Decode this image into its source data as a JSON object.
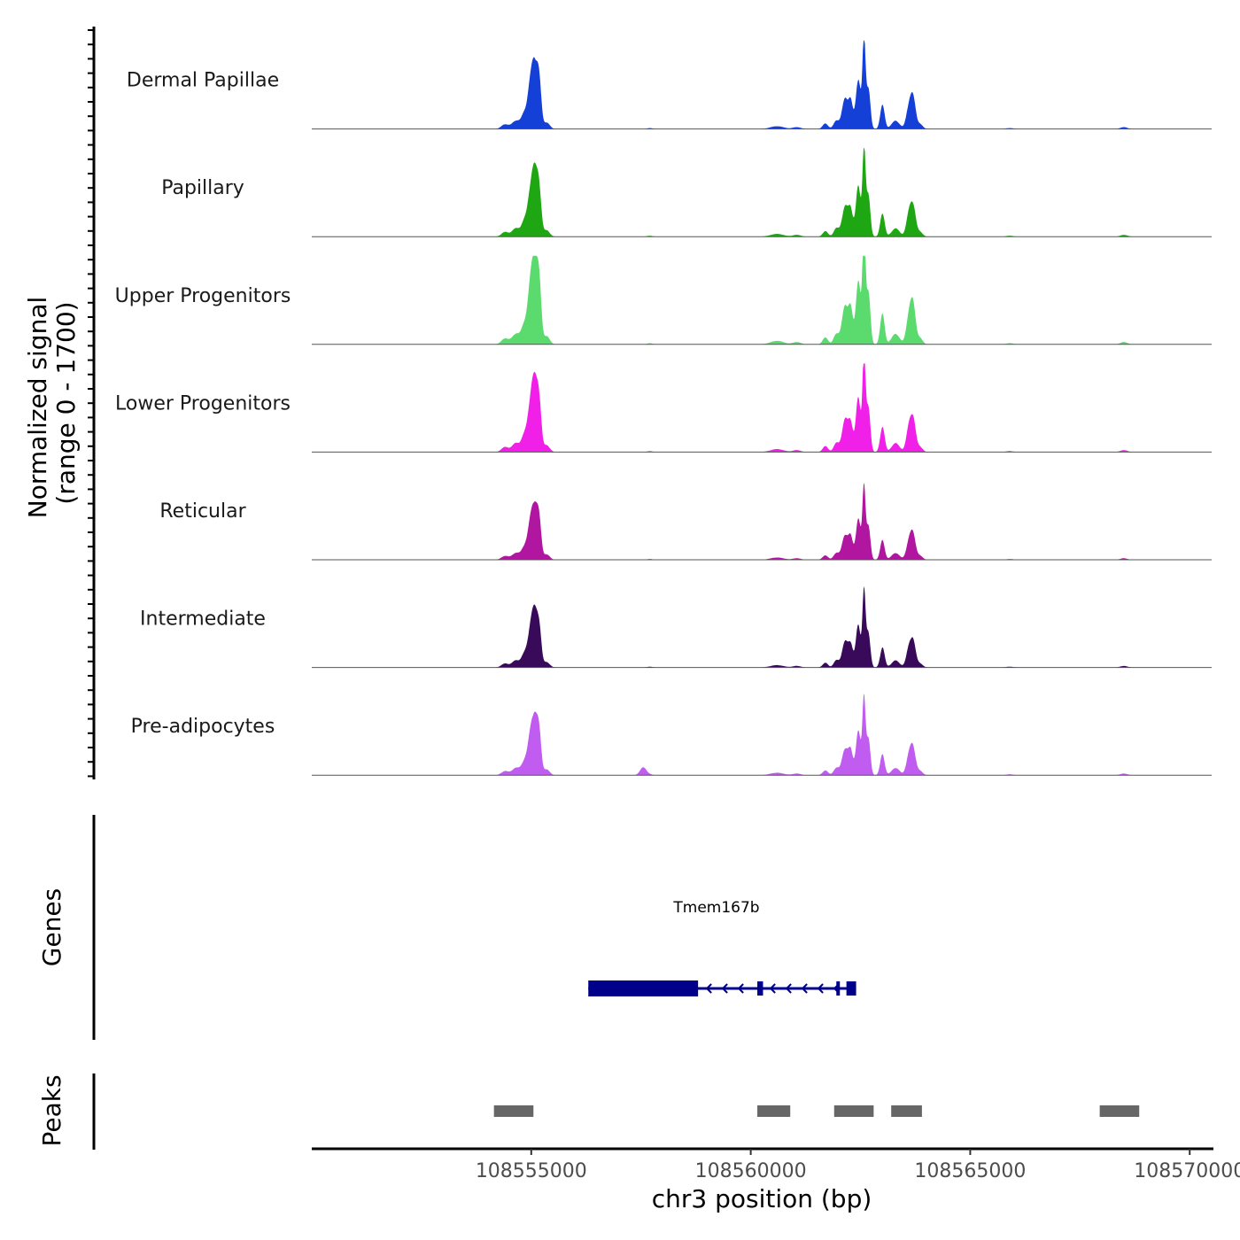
{
  "chart_data": {
    "type": "area",
    "y_axis_title": "Normalized signal\n(range 0 - 1700)",
    "y_axis_title_lines": [
      "Normalized signal",
      "(range 0 - 1700)"
    ],
    "signal_range": [
      0,
      1700
    ],
    "x_axis_title": "chr3 position (bp)",
    "xlim": [
      108550000,
      108570500
    ],
    "x_ticks": [
      108555000,
      108560000,
      108565000,
      108570000
    ],
    "x_tick_labels": [
      "108555000",
      "108560000",
      "108565000",
      "108570000"
    ],
    "series": [
      {
        "name": "Dermal Papillae",
        "color": "#1540d8",
        "scale": 1.0
      },
      {
        "name": "Papillary",
        "color": "#1ea712",
        "scale": 1.0
      },
      {
        "name": "Upper Progenitors",
        "color": "#5bda6e",
        "scale": 1.28
      },
      {
        "name": "Lower Progenitors",
        "color": "#f020e8",
        "scale": 1.08
      },
      {
        "name": "Reticular",
        "color": "#b0169f",
        "scale": 0.82
      },
      {
        "name": "Intermediate",
        "color": "#3a0a5a",
        "scale": 0.85
      },
      {
        "name": "Pre-adipocytes",
        "color": "#c05cf0",
        "scale": 0.88
      }
    ],
    "peaks_profile": [
      {
        "pos": 108554400,
        "h": 0.05,
        "w": 80
      },
      {
        "pos": 108554650,
        "h": 0.09,
        "w": 90
      },
      {
        "pos": 108554850,
        "h": 0.17,
        "w": 70
      },
      {
        "pos": 108554980,
        "h": 0.42,
        "w": 60
      },
      {
        "pos": 108555080,
        "h": 0.62,
        "w": 60
      },
      {
        "pos": 108555180,
        "h": 0.48,
        "w": 50
      },
      {
        "pos": 108555350,
        "h": 0.07,
        "w": 70
      },
      {
        "pos": 108557700,
        "h": 0.01,
        "w": 60
      },
      {
        "pos": 108560600,
        "h": 0.03,
        "w": 150
      },
      {
        "pos": 108561050,
        "h": 0.02,
        "w": 90
      },
      {
        "pos": 108561700,
        "h": 0.06,
        "w": 60
      },
      {
        "pos": 108561950,
        "h": 0.09,
        "w": 60
      },
      {
        "pos": 108562150,
        "h": 0.33,
        "w": 70
      },
      {
        "pos": 108562280,
        "h": 0.27,
        "w": 50
      },
      {
        "pos": 108562450,
        "h": 0.55,
        "w": 55
      },
      {
        "pos": 108562580,
        "h": 0.96,
        "w": 35
      },
      {
        "pos": 108562680,
        "h": 0.45,
        "w": 45
      },
      {
        "pos": 108563000,
        "h": 0.26,
        "w": 50
      },
      {
        "pos": 108563300,
        "h": 0.09,
        "w": 90
      },
      {
        "pos": 108563600,
        "h": 0.22,
        "w": 60
      },
      {
        "pos": 108563700,
        "h": 0.32,
        "w": 60
      },
      {
        "pos": 108563860,
        "h": 0.05,
        "w": 60
      },
      {
        "pos": 108565900,
        "h": 0.01,
        "w": 80
      },
      {
        "pos": 108568500,
        "h": 0.02,
        "w": 80
      }
    ],
    "preadipocyte_extra_peak": {
      "pos": 108557550,
      "h": 0.1,
      "w": 70
    }
  },
  "genes": {
    "title": "Genes",
    "gene_name": "Tmem167b",
    "strand": "-",
    "gene_start": 108556300,
    "gene_end": 108562400,
    "utr_block": [
      108556300,
      108558800
    ],
    "exons": [
      [
        108560150,
        108560280
      ],
      [
        108561950,
        108562000
      ],
      [
        108562180,
        108562400
      ]
    ],
    "color": "#00008b"
  },
  "peaks": {
    "title": "Peaks",
    "color": "#666666",
    "regions": [
      [
        108554150,
        108555050
      ],
      [
        108560150,
        108560900
      ],
      [
        108561900,
        108562800
      ],
      [
        108563200,
        108563900
      ],
      [
        108567950,
        108568850
      ]
    ]
  }
}
